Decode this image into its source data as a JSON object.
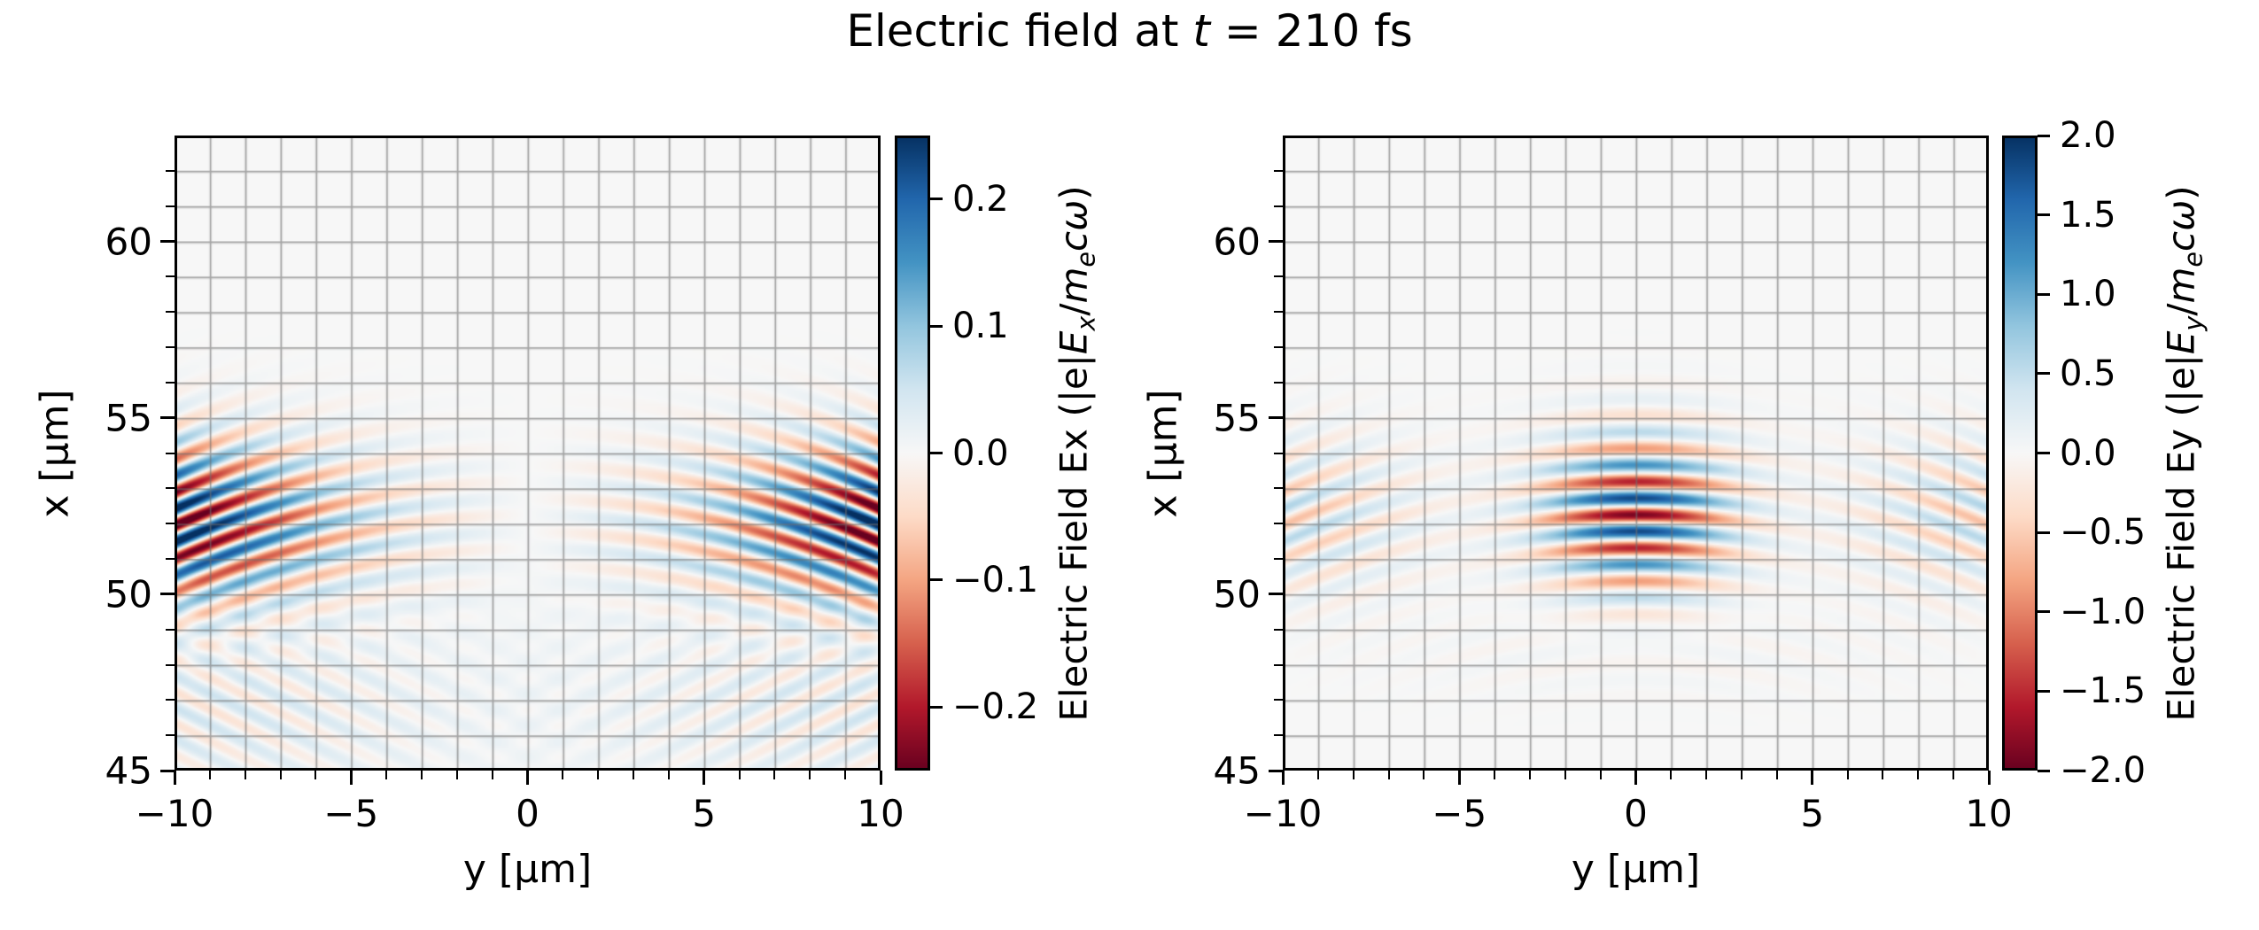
{
  "title": {
    "plain": "Electric field at t = 210 fs",
    "parts": [
      {
        "t": "Electric field at "
      },
      {
        "t": "t",
        "i": 1
      },
      {
        "t": " = 210 fs"
      }
    ]
  },
  "chart_data": {
    "type": "heatmap",
    "title": "Electric field at t = 210 fs",
    "time_fs": 210,
    "grid": {
      "on": true,
      "spacing_um": 1,
      "color": "rgba(110,110,110,0.6)"
    },
    "colormap": {
      "name": "RdBu",
      "stops": [
        "#67001f",
        "#b2182b",
        "#d6604d",
        "#f4a582",
        "#fddbc7",
        "#f7f7f7",
        "#d1e5f0",
        "#92c5de",
        "#4393c3",
        "#2166ac",
        "#053061"
      ]
    },
    "panels": [
      {
        "name": "Ex",
        "xlabel": "y [μm]",
        "ylabel": "x [μm]",
        "xlim": [
          -10,
          10
        ],
        "ylim": [
          45,
          63
        ],
        "xticks": [
          {
            "v": -10,
            "label": "−10"
          },
          {
            "v": -5,
            "label": "−5"
          },
          {
            "v": 0,
            "label": "0"
          },
          {
            "v": 5,
            "label": "5"
          },
          {
            "v": 10,
            "label": "10"
          }
        ],
        "yticks": [
          {
            "v": 45,
            "label": "45"
          },
          {
            "v": 50,
            "label": "50"
          },
          {
            "v": 55,
            "label": "55"
          },
          {
            "v": 60,
            "label": "60"
          }
        ],
        "minor_tick_step_um": 1,
        "colorbar": {
          "vmin": -0.25,
          "vmax": 0.25,
          "ticks": [
            {
              "v": 0.2,
              "label": "0.2"
            },
            {
              "v": 0.1,
              "label": "0.1"
            },
            {
              "v": 0.0,
              "label": "0.0"
            },
            {
              "v": -0.1,
              "label": "−0.1"
            },
            {
              "v": -0.2,
              "label": "−0.2"
            }
          ],
          "label_plain": "Electric Field Ex (|e|Eₓ/mₑcω)",
          "label_parts": [
            {
              "t": "Electric Field Ex (|e|"
            },
            {
              "t": "E",
              "i": 1
            },
            {
              "t": "x",
              "i": 1,
              "sub": 1
            },
            {
              "t": "/"
            },
            {
              "t": "m",
              "i": 1
            },
            {
              "t": "e",
              "i": 1,
              "sub": 1
            },
            {
              "t": "c",
              "i": 1
            },
            {
              "t": "ω",
              "i": 1
            },
            {
              "t": ")"
            }
          ]
        },
        "field_model": {
          "type": "ex",
          "amp": 0.3,
          "xc": 52.0,
          "sigX": 2.2,
          "lambda_um": 0.95,
          "curvature": 0.022,
          "edge_base": 0.45,
          "edge_peak": 0.55,
          "edge_width": 4.5,
          "phase0": 3.14159,
          "diag_amp": 0.045,
          "diag_xc": 46.8,
          "diag_sigX": 2.3,
          "diag_lambda": 0.8,
          "diag_slope": 0.5,
          "diag_yw": 7.0,
          "tint": 0.008
        },
        "description": "Transverse laser field Ex at t = 210 fs. Antisymmetric about y = 0 (white nodal seam at y = 0); strongest curved wave stripes near the edges |y| ≈ 8–10 μm for x ≈ 49–55 μm, saturating the ±0.25 color scale; wavelength ≈ 1 μm; wavefronts bow downward away from y = 0; faint diagonal scattered waves below x ≈ 49 μm."
      },
      {
        "name": "Ey",
        "xlabel": "y [μm]",
        "ylabel": "x [μm]",
        "xlim": [
          -10,
          10
        ],
        "ylim": [
          45,
          63
        ],
        "xticks": [
          {
            "v": -10,
            "label": "−10"
          },
          {
            "v": -5,
            "label": "−5"
          },
          {
            "v": 0,
            "label": "0"
          },
          {
            "v": 5,
            "label": "5"
          },
          {
            "v": 10,
            "label": "10"
          }
        ],
        "yticks": [
          {
            "v": 45,
            "label": "45"
          },
          {
            "v": 50,
            "label": "50"
          },
          {
            "v": 55,
            "label": "55"
          },
          {
            "v": 60,
            "label": "60"
          }
        ],
        "minor_tick_step_um": 1,
        "colorbar": {
          "vmin": -2.0,
          "vmax": 2.0,
          "ticks": [
            {
              "v": 2.0,
              "label": "2.0"
            },
            {
              "v": 1.5,
              "label": "1.5"
            },
            {
              "v": 1.0,
              "label": "1.0"
            },
            {
              "v": 0.5,
              "label": "0.5"
            },
            {
              "v": 0.0,
              "label": "0.0"
            },
            {
              "v": -0.5,
              "label": "−0.5"
            },
            {
              "v": -1.0,
              "label": "−1.0"
            },
            {
              "v": -1.5,
              "label": "−1.5"
            },
            {
              "v": -2.0,
              "label": "−2.0"
            }
          ],
          "label_plain": "Electric Field Ey (|e|Eᵧ/mₑcω)",
          "label_parts": [
            {
              "t": "Electric Field Ey (|e|"
            },
            {
              "t": "E",
              "i": 1
            },
            {
              "t": "y",
              "i": 1,
              "sub": 1
            },
            {
              "t": "/"
            },
            {
              "t": "m",
              "i": 1
            },
            {
              "t": "e",
              "i": 1,
              "sub": 1
            },
            {
              "t": "c",
              "i": 1
            },
            {
              "t": "ω",
              "i": 1
            },
            {
              "t": ")"
            }
          ]
        },
        "field_model": {
          "type": "ey",
          "amp": 1.9,
          "xc": 52.25,
          "sigX": 2.1,
          "waist": 2.6,
          "wing": 0.32,
          "wing_width": 3.6,
          "lambda_um": 0.95,
          "curvature": 0.022,
          "phase0": 3.14159,
          "sec_amp": 0.1,
          "sec_xc": 48.5,
          "sec_sigX": 1.3,
          "sec_yw": 6.5,
          "sec_curv": 0.03
        },
        "description": "Main laser field Ey at t = 210 fs. Intense Gaussian focal spot centered at y = 0, x ≈ 52 μm with alternating red/blue horizontal stripes (wavelength ≈ 1 μm) reaching |Ey| ≈ 2 (|e|Ey/mecω); weaker curved side lobes near |y| ≈ 7–10 μm; wavefronts bow downward away from the axis; faint trailing arcs near x ≈ 48–49 μm."
      }
    ]
  }
}
